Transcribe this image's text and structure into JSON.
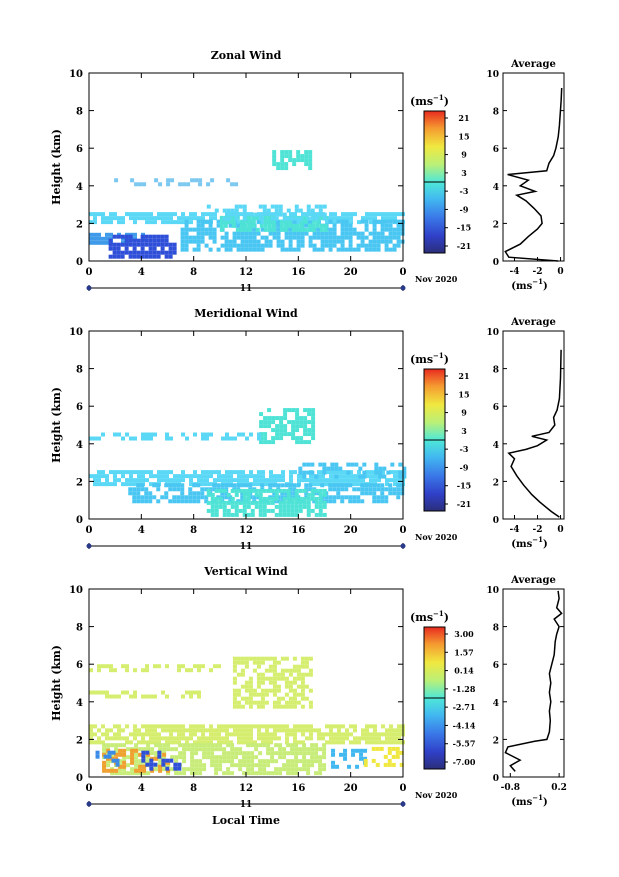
{
  "x_ticks": [
    "0",
    "4",
    "8",
    "12",
    "16",
    "20",
    "0"
  ],
  "day_label": "11",
  "date_label": "Nov 2020",
  "y_ticks": [
    "0",
    "2",
    "4",
    "6",
    "8",
    "10"
  ],
  "y_axis_label": "Height (km)",
  "bottom_x_label": "Local Time",
  "unit_label_main": "(ms",
  "unit_label_sup": "−1",
  "unit_label_close": ")",
  "avg_title": "Average",
  "panels": [
    {
      "title": "Zonal Wind",
      "colorbar_ticks": [
        "21",
        "15",
        "9",
        "3",
        "-3",
        "-9",
        "-15",
        "-21"
      ],
      "avg_x_ticks": [
        "-4",
        "-2",
        "0"
      ],
      "avg_xlim": [
        -5,
        0.3
      ],
      "avg_profile": [
        [
          -0.2,
          0
        ],
        [
          -4.5,
          0.2
        ],
        [
          -4.8,
          0.5
        ],
        [
          -3.5,
          0.9
        ],
        [
          -2.8,
          1.3
        ],
        [
          -2.0,
          1.7
        ],
        [
          -1.6,
          2.0
        ],
        [
          -1.7,
          2.4
        ],
        [
          -2.3,
          2.8
        ],
        [
          -3.0,
          3.2
        ],
        [
          -3.8,
          3.5
        ],
        [
          -2.2,
          3.7
        ],
        [
          -3.5,
          4.0
        ],
        [
          -2.8,
          4.3
        ],
        [
          -4.6,
          4.6
        ],
        [
          -1.2,
          4.8
        ],
        [
          -1.0,
          5.2
        ],
        [
          -0.6,
          5.6
        ],
        [
          -0.4,
          6.0
        ],
        [
          -0.2,
          6.6
        ],
        [
          -0.1,
          7.2
        ],
        [
          0.05,
          8.5
        ],
        [
          0.1,
          9.2
        ]
      ]
    },
    {
      "title": "Meridional Wind",
      "colorbar_ticks": [
        "21",
        "15",
        "9",
        "3",
        "-3",
        "-9",
        "-15",
        "-21"
      ],
      "avg_x_ticks": [
        "-4",
        "-2",
        "0"
      ],
      "avg_xlim": [
        -5,
        0.3
      ],
      "avg_profile": [
        [
          -0.1,
          0.1
        ],
        [
          -0.8,
          0.4
        ],
        [
          -1.8,
          0.9
        ],
        [
          -2.5,
          1.3
        ],
        [
          -3.2,
          1.8
        ],
        [
          -3.8,
          2.3
        ],
        [
          -4.3,
          2.8
        ],
        [
          -4.0,
          3.2
        ],
        [
          -4.5,
          3.5
        ],
        [
          -3.0,
          3.7
        ],
        [
          -2.0,
          3.9
        ],
        [
          -1.2,
          4.2
        ],
        [
          -2.5,
          4.4
        ],
        [
          -1.0,
          4.6
        ],
        [
          -0.5,
          5.0
        ],
        [
          -0.6,
          5.4
        ],
        [
          -0.3,
          5.8
        ],
        [
          -0.1,
          6.4
        ],
        [
          0.0,
          7.5
        ],
        [
          0.05,
          9.0
        ]
      ]
    },
    {
      "title": "Vertical Wind",
      "colorbar_ticks": [
        "3.00",
        "1.57",
        "0.14",
        "-1.28",
        "-2.71",
        "-4.14",
        "-5.57",
        "-7.00"
      ],
      "avg_x_ticks": [
        "-0.8",
        "0.2"
      ],
      "avg_xlim": [
        -0.95,
        0.3
      ],
      "avg_profile": [
        [
          -0.7,
          0.3
        ],
        [
          -0.8,
          0.6
        ],
        [
          -0.6,
          0.9
        ],
        [
          -0.9,
          1.3
        ],
        [
          -0.85,
          1.6
        ],
        [
          -0.3,
          1.9
        ],
        [
          -0.05,
          2.0
        ],
        [
          0.0,
          2.4
        ],
        [
          0.02,
          3.0
        ],
        [
          0.0,
          3.5
        ],
        [
          0.03,
          4.0
        ],
        [
          0.0,
          4.5
        ],
        [
          0.03,
          5.0
        ],
        [
          0.0,
          5.5
        ],
        [
          0.05,
          6.0
        ],
        [
          0.1,
          6.5
        ],
        [
          0.12,
          7.2
        ],
        [
          0.15,
          7.6
        ],
        [
          0.2,
          8.0
        ],
        [
          0.1,
          8.4
        ],
        [
          0.25,
          8.7
        ],
        [
          0.15,
          9.0
        ],
        [
          0.2,
          9.5
        ],
        [
          0.18,
          9.9
        ]
      ]
    }
  ]
}
